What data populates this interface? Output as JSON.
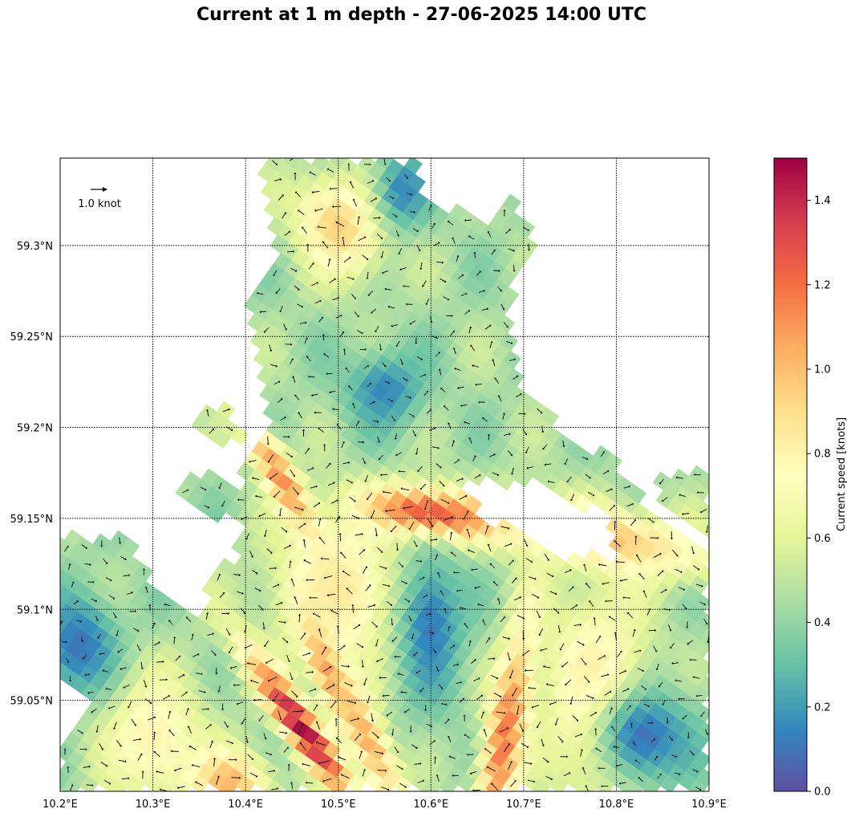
{
  "title": "Current at 1 m depth - 27-06-2025 14:00 UTC",
  "map": {
    "lon_range": [
      10.2,
      10.9
    ],
    "lat_range": [
      59.0,
      59.348
    ],
    "lon_ticks": [
      10.2,
      10.3,
      10.4,
      10.5,
      10.6,
      10.7,
      10.8,
      10.9
    ],
    "lon_tick_labels": [
      "10.2°E",
      "10.3°E",
      "10.4°E",
      "10.5°E",
      "10.6°E",
      "10.7°E",
      "10.8°E",
      "10.9°E"
    ],
    "lat_ticks": [
      59.05,
      59.1,
      59.15,
      59.2,
      59.25,
      59.3
    ],
    "lat_tick_labels": [
      "59.05°N",
      "59.1°N",
      "59.15°N",
      "59.2°N",
      "59.25°N",
      "59.3°N"
    ],
    "grid": "dotted",
    "quiver_key": {
      "label": "1.0 knot",
      "value": 1.0
    }
  },
  "colorbar": {
    "label": "Current speed [knots]",
    "min": 0.0,
    "max": 1.5,
    "ticks": [
      0.0,
      0.2,
      0.4,
      0.6,
      0.8,
      1.0,
      1.2,
      1.4
    ],
    "tick_labels": [
      "0.0",
      "0.2",
      "0.4",
      "0.6",
      "0.8",
      "1.0",
      "1.2",
      "1.4"
    ],
    "colormap": "Spectral_r",
    "colors": [
      "#5e4fa2",
      "#3288bd",
      "#66c2a5",
      "#abdda4",
      "#e6f598",
      "#ffffbf",
      "#fee08b",
      "#fdae61",
      "#f46d43",
      "#d53e4f",
      "#9e0142"
    ]
  },
  "chart_data": {
    "type": "heatmap",
    "title": "Current at 1 m depth - 27-06-2025 14:00 UTC",
    "xlabel": "",
    "ylabel": "",
    "xlim": [
      10.2,
      10.9
    ],
    "ylim": [
      59.0,
      59.348
    ],
    "value_label": "Current speed [knots]",
    "value_range": [
      0.0,
      1.5
    ],
    "water_polygons": [
      [
        [
          10.2,
          59.0
        ],
        [
          10.2,
          59.02
        ],
        [
          10.23,
          59.045
        ],
        [
          10.27,
          59.06
        ],
        [
          10.32,
          59.072
        ],
        [
          10.35,
          59.09
        ],
        [
          10.36,
          59.12
        ],
        [
          10.39,
          59.13
        ],
        [
          10.4,
          59.18
        ],
        [
          10.43,
          59.2
        ],
        [
          10.4,
          59.26
        ],
        [
          10.43,
          59.29
        ],
        [
          10.425,
          59.33
        ],
        [
          10.42,
          59.348
        ],
        [
          10.58,
          59.348
        ],
        [
          10.6,
          59.32
        ],
        [
          10.64,
          59.32
        ],
        [
          10.7,
          59.3
        ],
        [
          10.68,
          59.26
        ],
        [
          10.7,
          59.22
        ],
        [
          10.74,
          59.2
        ],
        [
          10.8,
          59.18
        ],
        [
          10.84,
          59.15
        ],
        [
          10.9,
          59.13
        ],
        [
          10.9,
          59.0
        ]
      ],
      [
        [
          10.36,
          59.21
        ],
        [
          10.38,
          59.21
        ],
        [
          10.4,
          59.2
        ],
        [
          10.39,
          59.19
        ],
        [
          10.36,
          59.19
        ],
        [
          10.34,
          59.2
        ]
      ],
      [
        [
          10.33,
          59.17
        ],
        [
          10.37,
          59.175
        ],
        [
          10.4,
          59.16
        ],
        [
          10.38,
          59.15
        ],
        [
          10.34,
          59.155
        ]
      ],
      [
        [
          10.17,
          59.14
        ],
        [
          10.28,
          59.14
        ],
        [
          10.3,
          59.11
        ],
        [
          10.36,
          59.09
        ],
        [
          10.33,
          59.06
        ],
        [
          10.2,
          59.06
        ],
        [
          10.15,
          59.1
        ]
      ],
      [
        [
          10.22,
          59.07
        ],
        [
          10.27,
          59.08
        ],
        [
          10.3,
          59.06
        ],
        [
          10.27,
          59.05
        ],
        [
          10.22,
          59.05
        ]
      ],
      [
        [
          10.74,
          59.12
        ],
        [
          10.8,
          59.14
        ],
        [
          10.86,
          59.13
        ],
        [
          10.9,
          59.11
        ],
        [
          10.9,
          59.05
        ],
        [
          10.85,
          59.03
        ],
        [
          10.8,
          59.06
        ],
        [
          10.76,
          59.09
        ]
      ],
      [
        [
          10.84,
          59.17
        ],
        [
          10.9,
          59.18
        ],
        [
          10.9,
          59.14
        ],
        [
          10.86,
          59.15
        ]
      ],
      [
        [
          10.65,
          59.31
        ],
        [
          10.69,
          59.33
        ],
        [
          10.71,
          59.3
        ],
        [
          10.68,
          59.28
        ],
        [
          10.65,
          59.29
        ]
      ]
    ],
    "land_holes": [
      [
        [
          10.62,
          59.17
        ],
        [
          10.72,
          59.17
        ],
        [
          10.79,
          59.15
        ],
        [
          10.8,
          59.13
        ],
        [
          10.74,
          59.13
        ],
        [
          10.66,
          59.15
        ]
      ]
    ],
    "speed_features": [
      {
        "x": 10.46,
        "y": 59.035,
        "value": 1.5,
        "sx": 0.012,
        "sy": 0.035,
        "rot": 35
      },
      {
        "x": 10.485,
        "y": 59.07,
        "value": 1.3,
        "sx": 0.01,
        "sy": 0.02,
        "rot": 20
      },
      {
        "x": 10.6,
        "y": 59.152,
        "value": 1.48,
        "sx": 0.05,
        "sy": 0.009,
        "rot": -8
      },
      {
        "x": 10.78,
        "y": 59.14,
        "value": 1.0,
        "sx": 0.09,
        "sy": 0.012,
        "rot": -12
      },
      {
        "x": 10.44,
        "y": 59.17,
        "value": 1.15,
        "sx": 0.012,
        "sy": 0.03,
        "rot": 30
      },
      {
        "x": 10.68,
        "y": 59.03,
        "value": 1.2,
        "sx": 0.015,
        "sy": 0.045,
        "rot": -10
      },
      {
        "x": 10.53,
        "y": 59.03,
        "value": 1.05,
        "sx": 0.014,
        "sy": 0.035,
        "rot": 25
      },
      {
        "x": 10.38,
        "y": 59.005,
        "value": 1.05,
        "sx": 0.03,
        "sy": 0.012,
        "rot": 0
      },
      {
        "x": 10.78,
        "y": 59.05,
        "value": 0.9,
        "sx": 0.04,
        "sy": 0.04,
        "rot": 0
      },
      {
        "x": 10.5,
        "y": 59.11,
        "value": 0.85,
        "sx": 0.05,
        "sy": 0.03,
        "rot": 0
      },
      {
        "x": 10.5,
        "y": 59.31,
        "value": 0.95,
        "sx": 0.03,
        "sy": 0.02,
        "rot": 30
      },
      {
        "x": 10.3,
        "y": 59.03,
        "value": 0.8,
        "sx": 0.04,
        "sy": 0.025,
        "rot": 0
      },
      {
        "x": 10.55,
        "y": 59.22,
        "value": 0.15,
        "sx": 0.03,
        "sy": 0.015,
        "rot": 0
      },
      {
        "x": 10.6,
        "y": 59.09,
        "value": 0.12,
        "sx": 0.025,
        "sy": 0.03,
        "rot": 0
      },
      {
        "x": 10.57,
        "y": 59.33,
        "value": 0.15,
        "sx": 0.02,
        "sy": 0.015,
        "rot": 0
      },
      {
        "x": 10.83,
        "y": 59.03,
        "value": 0.1,
        "sx": 0.04,
        "sy": 0.02,
        "rot": 0
      },
      {
        "x": 10.22,
        "y": 59.08,
        "value": 0.1,
        "sx": 0.03,
        "sy": 0.02,
        "rot": 0
      }
    ]
  }
}
